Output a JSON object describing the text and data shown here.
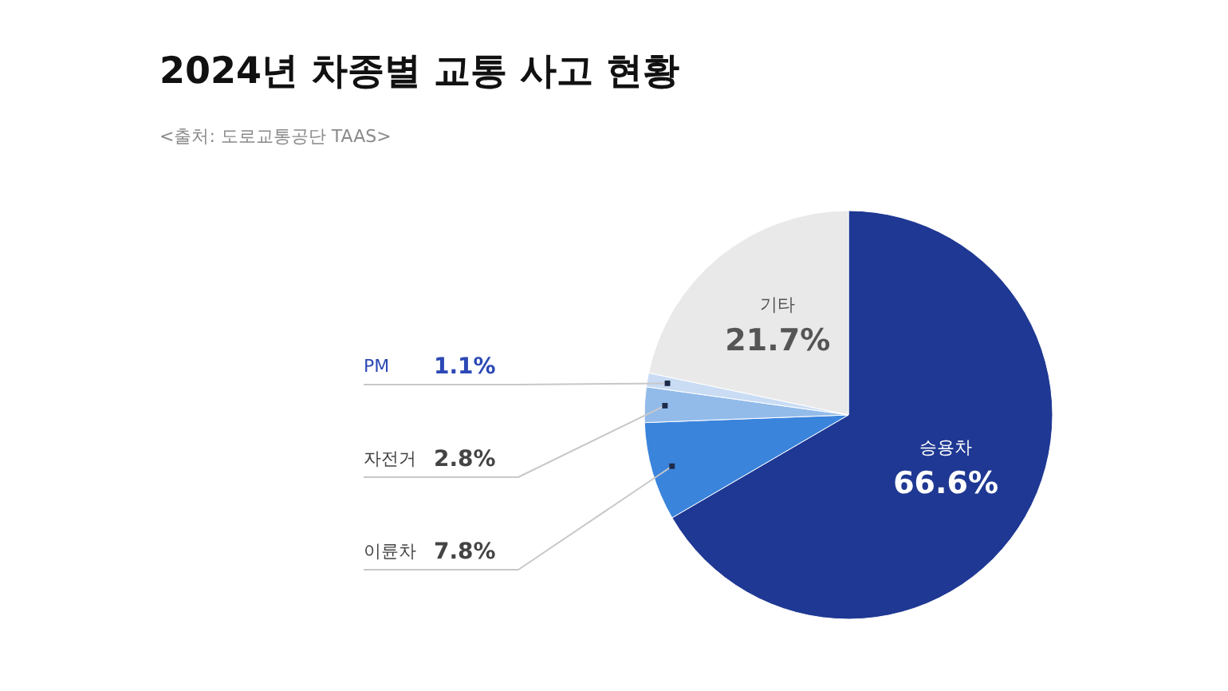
{
  "chart_data": {
    "type": "pie",
    "title": "2024년 차종별 교통 사고 현황",
    "subtitle": "<출처: 도로교통공단 TAAS>",
    "categories": [
      "승용차",
      "이륜차",
      "자전거",
      "PM",
      "기타"
    ],
    "values": [
      66.6,
      7.8,
      2.8,
      1.1,
      21.7
    ],
    "colors": [
      "#1f3893",
      "#3a84dc",
      "#92bbea",
      "#c9dcf4",
      "#e9e9e9"
    ],
    "value_labels": [
      "66.6%",
      "7.8%",
      "2.8%",
      "1.1%",
      "21.7%"
    ]
  }
}
